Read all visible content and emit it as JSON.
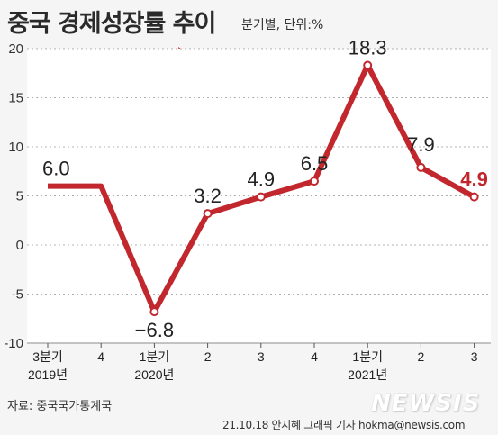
{
  "header": {
    "title": "중국 경제성장률 추이",
    "unit_note": "분기별, 단위:%"
  },
  "footer": {
    "source": "자료: 중국국가통계국",
    "credit": "21.10.18 안지혜 그래픽 기자 hokma@newsis.com",
    "logo": "NEWSIS"
  },
  "colors": {
    "line": "#c1272d",
    "highlight": "#c1272d",
    "plot_bg": "#ffffff",
    "page_bg": "#f5f5f5",
    "grid": "#b0b0b0"
  },
  "decoration": {
    "icon": "china-flag-arrow-icon"
  },
  "chart_data": {
    "type": "line",
    "title": "중국 경제성장률 추이",
    "ylabel": "",
    "xlabel": "",
    "ylim": [
      -10,
      20
    ],
    "yticks": [
      "20",
      "15",
      "10",
      "5",
      "0",
      "-5",
      "-10"
    ],
    "grid": true,
    "categories": [
      "3분기",
      "4",
      "1분기",
      "2",
      "3",
      "4",
      "1분기",
      "2",
      "3"
    ],
    "year_labels": [
      {
        "index": 0,
        "text": "2019년"
      },
      {
        "index": 2,
        "text": "2020년"
      },
      {
        "index": 6,
        "text": "2021년"
      }
    ],
    "values": [
      6.0,
      6.0,
      -6.8,
      3.2,
      4.9,
      6.5,
      18.3,
      7.9,
      4.9
    ],
    "labels": [
      "6.0",
      "",
      "−6.8",
      "3.2",
      "4.9",
      "6.5",
      "18.3",
      "7.9",
      "4.9"
    ],
    "highlight_index": 8
  }
}
